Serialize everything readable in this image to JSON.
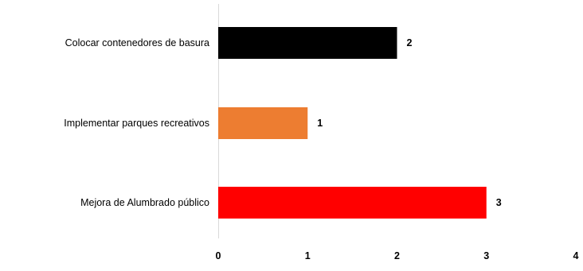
{
  "chart_data": {
    "type": "bar",
    "orientation": "horizontal",
    "categories": [
      "Colocar contenedores de basura",
      "Implementar parques recreativos",
      "Mejora de Alumbrado público"
    ],
    "values": [
      2,
      1,
      3
    ],
    "bar_colors": [
      "#000000",
      "#ED7D31",
      "#FF0000"
    ],
    "data_labels": [
      "2",
      "1",
      "3"
    ],
    "xlim": [
      0,
      4
    ],
    "x_ticks": [
      0,
      1,
      2,
      3,
      4
    ],
    "x_tick_labels": [
      "0",
      "1",
      "2",
      "3",
      "4"
    ],
    "grid": false,
    "legend": "none"
  }
}
